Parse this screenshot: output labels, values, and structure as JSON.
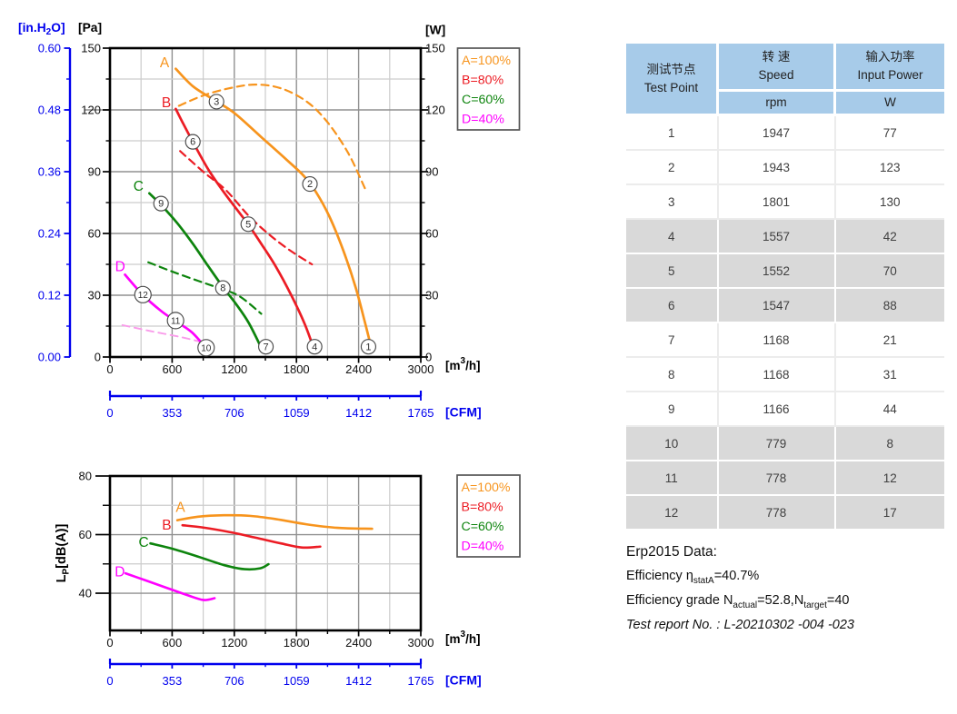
{
  "colors": {
    "A": "#F7941D",
    "B": "#EC1C24",
    "C": "#0D840D",
    "D": "#FF00FF",
    "D_dash": "#F99BEA",
    "blue": "#0000EE",
    "grid_major": "#909090",
    "grid_minor": "#CCCCCC",
    "axis": "#000000",
    "marker_stroke": "#4A4A4A",
    "table_header_bg": "#A7CBE9",
    "table_shaded_bg": "#D9D9D9"
  },
  "chart_data": [
    {
      "type": "line",
      "name": "pressure-flow-power",
      "x": {
        "range": [
          0,
          3000
        ],
        "ticks": [
          "0",
          "600",
          "1200",
          "1800",
          "2400",
          "3000"
        ],
        "tick_values": [
          0,
          600,
          1200,
          1800,
          2400,
          3000
        ],
        "minor_values": [
          300,
          900,
          1500,
          2100,
          2700
        ],
        "unit_pre": "[m",
        "unit_sup": "3",
        "unit_post": "/h]"
      },
      "y_pa": {
        "range": [
          0,
          150
        ],
        "label": "[Pa]",
        "ticks": [
          "150",
          "120",
          "90",
          "60",
          "30",
          "0"
        ],
        "tick_values": [
          150,
          120,
          90,
          60,
          30,
          0
        ],
        "minor_values": [
          135,
          105,
          75,
          45,
          15
        ],
        "major_grid": [
          120,
          90,
          60,
          30
        ],
        "minor_grid": [
          135,
          105,
          75,
          45,
          15
        ]
      },
      "y_inh2o": {
        "label_pre": "[in.H",
        "label_sub": "2",
        "label_post": "O]",
        "ticks": [
          "0.60",
          "0.48",
          "0.36",
          "0.24",
          "0.12",
          "0.00"
        ]
      },
      "y_w": {
        "label": "[W]",
        "ticks": [
          "150",
          "120",
          "90",
          "60",
          "30",
          "0"
        ],
        "tick_values": [
          150,
          120,
          90,
          60,
          30,
          0
        ]
      },
      "cfm": {
        "range": [
          0,
          1765
        ],
        "label": "[CFM]",
        "ticks": [
          "0",
          "353",
          "706",
          "1059",
          "1412",
          "1765"
        ]
      },
      "legend": [
        {
          "text": "A=100%",
          "color": "#F7941D"
        },
        {
          "text": "B=80%",
          "color": "#EC1C24"
        },
        {
          "text": "C=60%",
          "color": "#0D840D"
        },
        {
          "text": "D=40%",
          "color": "#FF00FF"
        }
      ],
      "series": [
        {
          "name": "A-power",
          "color": "#F7941D",
          "dash": true,
          "width": 2.2,
          "points": [
            [
              665,
              122
            ],
            [
              900,
              127
            ],
            [
              1150,
              130.5
            ],
            [
              1400,
              132.3
            ],
            [
              1650,
              130.5
            ],
            [
              1900,
              124
            ],
            [
              2100,
              114
            ],
            [
              2300,
              99
            ],
            [
              2460,
              82
            ]
          ]
        },
        {
          "name": "B-power",
          "color": "#EC1C24",
          "dash": true,
          "width": 2.2,
          "points": [
            [
              677,
              100
            ],
            [
              900,
              90
            ],
            [
              1120,
              81
            ],
            [
              1340,
              68.5
            ],
            [
              1560,
              58.5
            ],
            [
              1760,
              51
            ],
            [
              1950,
              45
            ]
          ]
        },
        {
          "name": "C-power",
          "color": "#0D840D",
          "dash": true,
          "width": 2.2,
          "points": [
            [
              370,
              46
            ],
            [
              600,
              41.5
            ],
            [
              850,
              37
            ],
            [
              1050,
              33.5
            ],
            [
              1250,
              29.5
            ],
            [
              1460,
              21
            ]
          ]
        },
        {
          "name": "D-power",
          "color": "#F99BEA",
          "dash": true,
          "width": 1.9,
          "points": [
            [
              120,
              15.5
            ],
            [
              400,
              12.5
            ],
            [
              700,
              9.5
            ],
            [
              905,
              7
            ]
          ]
        },
        {
          "name": "A-pressure",
          "color": "#F7941D",
          "dash": false,
          "width": 2.7,
          "points": [
            [
              635,
              140
            ],
            [
              800,
              131.5
            ],
            [
              1000,
              125
            ],
            [
              1200,
              118.5
            ],
            [
              1456,
              107
            ],
            [
              1700,
              96
            ],
            [
              1870,
              88
            ],
            [
              1990,
              80
            ],
            [
              2120,
              68
            ],
            [
              2250,
              52
            ],
            [
              2370,
              34
            ],
            [
              2460,
              17
            ],
            [
              2530,
              3
            ]
          ]
        },
        {
          "name": "B-pressure",
          "color": "#EC1C24",
          "dash": false,
          "width": 2.7,
          "points": [
            [
              635,
              120.5
            ],
            [
              700,
              114
            ],
            [
              800,
              104.5
            ],
            [
              950,
              91
            ],
            [
              1100,
              80
            ],
            [
              1250,
              70
            ],
            [
              1340,
              64
            ],
            [
              1460,
              55
            ],
            [
              1600,
              44
            ],
            [
              1750,
              30
            ],
            [
              1880,
              16
            ],
            [
              1975,
              3
            ]
          ]
        },
        {
          "name": "C-pressure",
          "color": "#0D840D",
          "dash": false,
          "width": 2.7,
          "points": [
            [
              380,
              79.5
            ],
            [
              500,
              73.5
            ],
            [
              650,
              65
            ],
            [
              800,
              55
            ],
            [
              950,
              44
            ],
            [
              1090,
              34
            ],
            [
              1220,
              25.5
            ],
            [
              1340,
              16.5
            ],
            [
              1465,
              4
            ]
          ]
        },
        {
          "name": "D-pressure",
          "color": "#FF00FF",
          "dash": false,
          "width": 2.7,
          "points": [
            [
              145,
              40
            ],
            [
              320,
              30
            ],
            [
              490,
              22.5
            ],
            [
              630,
              17.5
            ],
            [
              790,
              12
            ],
            [
              950,
              3
            ]
          ]
        }
      ],
      "series_labels": [
        {
          "text": "A",
          "x": 527,
          "y": 143,
          "color": "#F7941D"
        },
        {
          "text": "B",
          "x": 544,
          "y": 123.5,
          "color": "#EC1C24"
        },
        {
          "text": "C",
          "x": 275,
          "y": 83,
          "color": "#0D840D"
        },
        {
          "text": "D",
          "x": 98,
          "y": 44,
          "color": "#FF00FF"
        }
      ],
      "markers": [
        {
          "n": "1",
          "x": 2495,
          "y": 5
        },
        {
          "n": "2",
          "x": 1930,
          "y": 84
        },
        {
          "n": "3",
          "x": 1028,
          "y": 124
        },
        {
          "n": "4",
          "x": 1975,
          "y": 5
        },
        {
          "n": "5",
          "x": 1335,
          "y": 64.5
        },
        {
          "n": "6",
          "x": 800,
          "y": 104.5
        },
        {
          "n": "7",
          "x": 1505,
          "y": 5
        },
        {
          "n": "8",
          "x": 1090,
          "y": 33.5
        },
        {
          "n": "9",
          "x": 493,
          "y": 74.5
        },
        {
          "n": "10",
          "x": 928,
          "y": 4.5
        },
        {
          "n": "11",
          "x": 633,
          "y": 17.7
        },
        {
          "n": "12",
          "x": 318,
          "y": 30.3
        }
      ]
    },
    {
      "type": "line",
      "name": "noise",
      "x": {
        "range": [
          0,
          3000
        ],
        "ticks": [
          "0",
          "600",
          "1200",
          "1800",
          "2400",
          "3000"
        ],
        "tick_values": [
          0,
          600,
          1200,
          1800,
          2400,
          3000
        ],
        "minor_values": [
          300,
          900,
          1500,
          2100,
          2700
        ],
        "unit_pre": "[m",
        "unit_sup": "3",
        "unit_post": "/h]"
      },
      "y_db": {
        "range": [
          27.3,
          80
        ],
        "label_main": "L",
        "label_sub": "P",
        "label_rest": "[dB(A)]",
        "ticks": [
          "80",
          "60",
          "40"
        ],
        "tick_values": [
          80,
          60,
          40
        ],
        "minor_values": [
          70,
          50
        ],
        "major_grid": [
          60,
          40
        ],
        "minor_grid": [
          70,
          50
        ]
      },
      "cfm": {
        "range": [
          0,
          1765
        ],
        "label": "[CFM]",
        "ticks": [
          "0",
          "353",
          "706",
          "1059",
          "1412",
          "1765"
        ]
      },
      "legend": [
        {
          "text": "A=100%",
          "color": "#F7941D"
        },
        {
          "text": "B=80%",
          "color": "#EC1C24"
        },
        {
          "text": "C=60%",
          "color": "#0D840D"
        },
        {
          "text": "D=40%",
          "color": "#FF00FF"
        }
      ],
      "series": [
        {
          "name": "A-noise",
          "color": "#F7941D",
          "dash": false,
          "width": 2.6,
          "points": [
            [
              650,
              64.9
            ],
            [
              850,
              66.1
            ],
            [
              1100,
              66.6
            ],
            [
              1350,
              66.4
            ],
            [
              1600,
              65.3
            ],
            [
              1900,
              63.5
            ],
            [
              2200,
              62.3
            ],
            [
              2530,
              62
            ]
          ]
        },
        {
          "name": "B-noise",
          "color": "#EC1C24",
          "dash": false,
          "width": 2.6,
          "points": [
            [
              700,
              63.2
            ],
            [
              900,
              62.4
            ],
            [
              1150,
              60.9
            ],
            [
              1400,
              59
            ],
            [
              1650,
              57
            ],
            [
              1850,
              55.6
            ],
            [
              2030,
              55.9
            ]
          ]
        },
        {
          "name": "C-noise",
          "color": "#0D840D",
          "dash": false,
          "width": 2.6,
          "points": [
            [
              390,
              57
            ],
            [
              600,
              55.2
            ],
            [
              850,
              52.5
            ],
            [
              1100,
              49.6
            ],
            [
              1300,
              48.2
            ],
            [
              1450,
              48.5
            ],
            [
              1530,
              49.9
            ]
          ]
        },
        {
          "name": "D-noise",
          "color": "#FF00FF",
          "dash": false,
          "width": 2.6,
          "points": [
            [
              150,
              46.8
            ],
            [
              350,
              44.3
            ],
            [
              550,
              41.8
            ],
            [
              750,
              39.3
            ],
            [
              900,
              37.7
            ],
            [
              1010,
              38.3
            ]
          ]
        }
      ],
      "series_labels": [
        {
          "text": "A",
          "x": 680,
          "y": 69.3,
          "color": "#F7941D"
        },
        {
          "text": "B",
          "x": 548,
          "y": 63.2,
          "color": "#EC1C24"
        },
        {
          "text": "C",
          "x": 325,
          "y": 57.3,
          "color": "#0D840D"
        },
        {
          "text": "D",
          "x": 95,
          "y": 47.3,
          "color": "#FF00FF"
        }
      ],
      "markers": []
    }
  ],
  "table": {
    "header": {
      "col1_zh": "测试节点",
      "col1_en": "Test Point",
      "col2_zh": "转 速",
      "col2_en": "Speed",
      "col2_unit": "rpm",
      "col3_zh": "输入功率",
      "col3_en": "Input Power",
      "col3_unit": "W"
    },
    "rows": [
      {
        "point": "1",
        "speed": "1947",
        "power": "77",
        "shaded": false
      },
      {
        "point": "2",
        "speed": "1943",
        "power": "123",
        "shaded": false
      },
      {
        "point": "3",
        "speed": "1801",
        "power": "130",
        "shaded": false
      },
      {
        "point": "4",
        "speed": "1557",
        "power": "42",
        "shaded": true
      },
      {
        "point": "5",
        "speed": "1552",
        "power": "70",
        "shaded": true
      },
      {
        "point": "6",
        "speed": "1547",
        "power": "88",
        "shaded": true
      },
      {
        "point": "7",
        "speed": "1168",
        "power": "21",
        "shaded": false
      },
      {
        "point": "8",
        "speed": "1168",
        "power": "31",
        "shaded": false
      },
      {
        "point": "9",
        "speed": "1166",
        "power": "44",
        "shaded": false
      },
      {
        "point": "10",
        "speed": "779",
        "power": "8",
        "shaded": true
      },
      {
        "point": "11",
        "speed": "778",
        "power": "12",
        "shaded": true
      },
      {
        "point": "12",
        "speed": "778",
        "power": "17",
        "shaded": true
      }
    ]
  },
  "erp": {
    "title": "Erp2015  Data:",
    "eff_label": "Efficiency ",
    "eff_symbol": "η",
    "eff_sub": "statA",
    "eff_value": "=40.7%",
    "grade_label": "Efficiency grade ",
    "grade_n1": "N",
    "grade_sub1": "actual",
    "grade_v1": "=52.8,",
    "grade_n2": "N",
    "grade_sub2": "target",
    "grade_v2": "=40",
    "report": "Test report No.  : L-20210302 -004 -023"
  }
}
